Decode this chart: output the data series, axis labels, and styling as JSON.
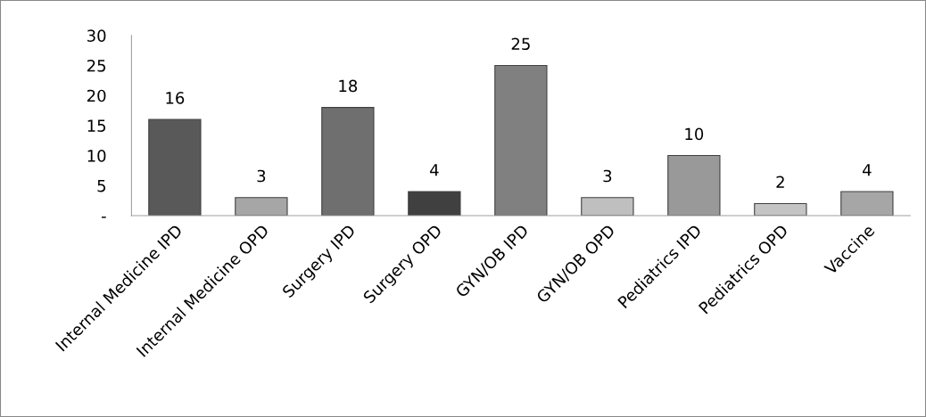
{
  "chart_data": {
    "type": "bar",
    "categories": [
      "Internal Medicine IPD",
      "Internal Medicine OPD",
      "Surgery IPD",
      "Surgery OPD",
      "GYN/OB IPD",
      "GYN/OB OPD",
      "Pediatrics IPD",
      "Pediatrics OPD",
      "Vaccine"
    ],
    "values": [
      16,
      3,
      18,
      4,
      25,
      3,
      10,
      2,
      4
    ],
    "colors": [
      "#595959",
      "#a6a6a6",
      "#6f6f6f",
      "#404040",
      "#808080",
      "#bfbfbf",
      "#999999",
      "#c4c4c4",
      "#a6a6a6"
    ],
    "ylim": [
      0,
      30
    ],
    "yticks": [
      {
        "value": 0,
        "label": "-"
      },
      5,
      10,
      15,
      20,
      25,
      30
    ],
    "data_labels": true,
    "grid": false,
    "legend": false
  }
}
